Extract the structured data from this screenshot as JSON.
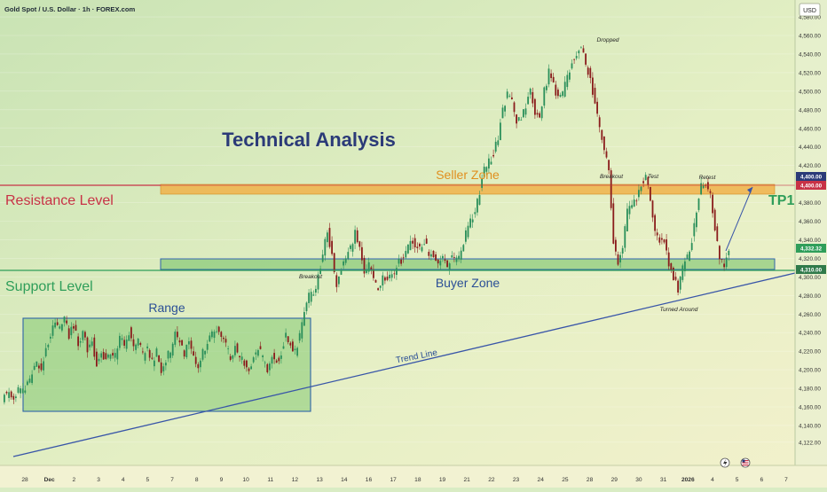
{
  "header": {
    "title": "Gold Spot / U.S. Dollar · 1h · FOREX.com",
    "currency": "USD"
  },
  "colors": {
    "candle_up": "#2a8f5a",
    "candle_down": "#8a1c1c",
    "resistance": "#c83246",
    "support": "#2f9e5a",
    "seller_zone": "#f0b24a",
    "buyer_zone": "#2f63a8",
    "trend_line": "#3855a8",
    "range_box": "#2f63a8",
    "title_text": "#2b3a78"
  },
  "chart_data": {
    "type": "candlestick",
    "instrument": "Gold Spot / U.S. Dollar",
    "timeframe": "1h",
    "ylim": [
      4110,
      4600
    ],
    "y_ticks": [
      4122,
      4140,
      4160,
      4180,
      4200,
      4220,
      4240,
      4260,
      4280,
      4300,
      4320,
      4340,
      4360,
      4380,
      4420,
      4440,
      4460,
      4480,
      4500,
      4520,
      4540,
      4560,
      4580
    ],
    "y_tick_labels": [
      "4,122.00",
      "4,140.00",
      "4,160.00",
      "4,180.00",
      "4,200.00",
      "4,220.00",
      "4,240.00",
      "4,260.00",
      "4,280.00",
      "4,300.00",
      "4,320.00",
      "4,340.00",
      "4,360.00",
      "4,380.00",
      "4,420.00",
      "4,440.00",
      "4,460.00",
      "4,480.00",
      "4,500.00",
      "4,520.00",
      "4,540.00",
      "4,560.00",
      "4,580.00"
    ],
    "x_ticks": [
      "28",
      "Dec",
      "2",
      "3",
      "4",
      "5",
      "7",
      "8",
      "9",
      "10",
      "11",
      "12",
      "13",
      "14",
      "16",
      "17",
      "18",
      "19",
      "21",
      "22",
      "23",
      "24",
      "25",
      "28",
      "29",
      "30",
      "31",
      "2026",
      "4",
      "5",
      "6",
      "7"
    ],
    "price_markers": [
      {
        "label": "4,400.00",
        "value": 4400,
        "style": "navy"
      },
      {
        "label": "4,400.00",
        "value": 4400,
        "style": "red"
      },
      {
        "label": "4,332.32",
        "value": 4332.32,
        "style": "green"
      },
      {
        "label": "4,310.00",
        "value": 4310,
        "style": "green-dark"
      }
    ],
    "price_path": [
      [
        0,
        4170
      ],
      [
        3,
        4176
      ],
      [
        5,
        4170
      ],
      [
        7,
        4178
      ],
      [
        9,
        4175
      ],
      [
        11,
        4183
      ],
      [
        13,
        4195
      ],
      [
        15,
        4205
      ],
      [
        17,
        4200
      ],
      [
        19,
        4226
      ],
      [
        21,
        4236
      ],
      [
        23,
        4252
      ],
      [
        25,
        4244
      ],
      [
        27,
        4258
      ],
      [
        29,
        4238
      ],
      [
        31,
        4246
      ],
      [
        33,
        4230
      ],
      [
        35,
        4240
      ],
      [
        37,
        4220
      ],
      [
        39,
        4232
      ],
      [
        41,
        4205
      ],
      [
        43,
        4222
      ],
      [
        45,
        4210
      ],
      [
        47,
        4218
      ],
      [
        49,
        4215
      ],
      [
        51,
        4236
      ],
      [
        53,
        4222
      ],
      [
        55,
        4242
      ],
      [
        57,
        4224
      ],
      [
        59,
        4232
      ],
      [
        61,
        4214
      ],
      [
        63,
        4226
      ],
      [
        65,
        4208
      ],
      [
        67,
        4218
      ],
      [
        69,
        4200
      ],
      [
        71,
        4212
      ],
      [
        73,
        4220
      ],
      [
        75,
        4240
      ],
      [
        77,
        4230
      ],
      [
        79,
        4218
      ],
      [
        81,
        4232
      ],
      [
        83,
        4216
      ],
      [
        85,
        4204
      ],
      [
        87,
        4218
      ],
      [
        89,
        4226
      ],
      [
        91,
        4238
      ],
      [
        93,
        4244
      ],
      [
        95,
        4232
      ],
      [
        97,
        4226
      ],
      [
        99,
        4212
      ],
      [
        101,
        4224
      ],
      [
        103,
        4214
      ],
      [
        105,
        4206
      ],
      [
        107,
        4200
      ],
      [
        109,
        4212
      ],
      [
        111,
        4224
      ],
      [
        113,
        4212
      ],
      [
        115,
        4200
      ],
      [
        117,
        4214
      ],
      [
        119,
        4208
      ],
      [
        121,
        4220
      ],
      [
        123,
        4240
      ],
      [
        125,
        4228
      ],
      [
        127,
        4218
      ],
      [
        129,
        4236
      ],
      [
        131,
        4260
      ],
      [
        133,
        4278
      ],
      [
        135,
        4280
      ],
      [
        137,
        4300
      ],
      [
        139,
        4326
      ],
      [
        141,
        4350
      ],
      [
        143,
        4322
      ],
      [
        145,
        4290
      ],
      [
        147,
        4308
      ],
      [
        149,
        4320
      ],
      [
        151,
        4332
      ],
      [
        153,
        4348
      ],
      [
        155,
        4328
      ],
      [
        157,
        4304
      ],
      [
        159,
        4312
      ],
      [
        161,
        4296
      ],
      [
        163,
        4288
      ],
      [
        165,
        4300
      ],
      [
        167,
        4296
      ],
      [
        169,
        4302
      ],
      [
        171,
        4312
      ],
      [
        173,
        4318
      ],
      [
        175,
        4324
      ],
      [
        177,
        4340
      ],
      [
        179,
        4334
      ],
      [
        181,
        4328
      ],
      [
        183,
        4338
      ],
      [
        185,
        4326
      ],
      [
        187,
        4322
      ],
      [
        189,
        4316
      ],
      [
        191,
        4322
      ],
      [
        193,
        4312
      ],
      [
        195,
        4320
      ],
      [
        197,
        4316
      ],
      [
        199,
        4328
      ],
      [
        201,
        4346
      ],
      [
        203,
        4360
      ],
      [
        205,
        4368
      ],
      [
        207,
        4392
      ],
      [
        209,
        4414
      ],
      [
        211,
        4424
      ],
      [
        213,
        4432
      ],
      [
        215,
        4450
      ],
      [
        217,
        4482
      ],
      [
        219,
        4496
      ],
      [
        221,
        4488
      ],
      [
        223,
        4466
      ],
      [
        225,
        4472
      ],
      [
        227,
        4486
      ],
      [
        229,
        4500
      ],
      [
        231,
        4476
      ],
      [
        233,
        4472
      ],
      [
        235,
        4500
      ],
      [
        237,
        4520
      ],
      [
        239,
        4508
      ],
      [
        241,
        4492
      ],
      [
        243,
        4498
      ],
      [
        245,
        4514
      ],
      [
        247,
        4530
      ],
      [
        249,
        4540
      ],
      [
        251,
        4548
      ],
      [
        253,
        4530
      ],
      [
        255,
        4510
      ],
      [
        257,
        4490
      ],
      [
        259,
        4460
      ],
      [
        261,
        4440
      ],
      [
        263,
        4410
      ],
      [
        265,
        4340
      ],
      [
        267,
        4318
      ],
      [
        269,
        4330
      ],
      [
        271,
        4370
      ],
      [
        273,
        4378
      ],
      [
        275,
        4386
      ],
      [
        277,
        4400
      ],
      [
        279,
        4410
      ],
      [
        281,
        4386
      ],
      [
        283,
        4350
      ],
      [
        285,
        4338
      ],
      [
        287,
        4342
      ],
      [
        289,
        4316
      ],
      [
        291,
        4300
      ],
      [
        293,
        4284
      ],
      [
        295,
        4308
      ],
      [
        297,
        4322
      ],
      [
        299,
        4340
      ],
      [
        301,
        4374
      ],
      [
        303,
        4396
      ],
      [
        305,
        4400
      ],
      [
        307,
        4390
      ],
      [
        309,
        4350
      ],
      [
        311,
        4318
      ],
      [
        313,
        4312
      ],
      [
        315,
        4332
      ]
    ]
  },
  "annotations": {
    "chart_title": "Technical Analysis",
    "seller_zone": "Seller Zone",
    "buyer_zone": "Buyer Zone",
    "resistance_level": "Resistance Level",
    "support_level": "Support Level",
    "range": "Range",
    "trend_line": "Trend Line",
    "tp1": "TP1",
    "dropped": "Dropped",
    "breakout_1": "Breakout",
    "breakout_2": "Breakout",
    "test": "Test",
    "retest": "Retest",
    "turned_around": "Turned Around"
  }
}
